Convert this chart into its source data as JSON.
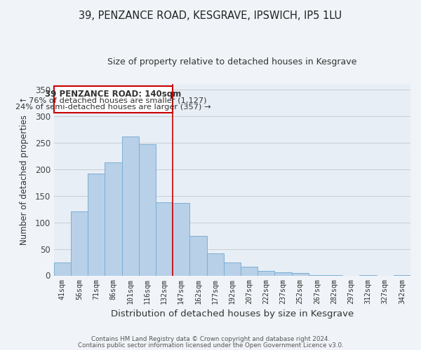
{
  "title": "39, PENZANCE ROAD, KESGRAVE, IPSWICH, IP5 1LU",
  "subtitle": "Size of property relative to detached houses in Kesgrave",
  "xlabel": "Distribution of detached houses by size in Kesgrave",
  "ylabel": "Number of detached properties",
  "categories": [
    "41sqm",
    "56sqm",
    "71sqm",
    "86sqm",
    "101sqm",
    "116sqm",
    "132sqm",
    "147sqm",
    "162sqm",
    "177sqm",
    "192sqm",
    "207sqm",
    "222sqm",
    "237sqm",
    "252sqm",
    "267sqm",
    "282sqm",
    "297sqm",
    "312sqm",
    "327sqm",
    "342sqm"
  ],
  "values": [
    24,
    120,
    192,
    213,
    261,
    247,
    138,
    136,
    75,
    41,
    25,
    16,
    9,
    6,
    5,
    1,
    1,
    0,
    1,
    0,
    1
  ],
  "bar_color": "#b8d0e8",
  "bar_edge_color": "#7bafd4",
  "annotation_box_color": "#ffffff",
  "annotation_border_color": "#cc0000",
  "annotation_title": "39 PENZANCE ROAD: 140sqm",
  "annotation_line1": "← 76% of detached houses are smaller (1,127)",
  "annotation_line2": "24% of semi-detached houses are larger (357) →",
  "vline_x": 6.5,
  "vline_color": "#cc0000",
  "ylim": [
    0,
    360
  ],
  "yticks": [
    0,
    50,
    100,
    150,
    200,
    250,
    300,
    350
  ],
  "footer_line1": "Contains HM Land Registry data © Crown copyright and database right 2024.",
  "footer_line2": "Contains public sector information licensed under the Open Government Licence v3.0.",
  "background_color": "#f0f4f8",
  "plot_background_color": "#e8eef5"
}
